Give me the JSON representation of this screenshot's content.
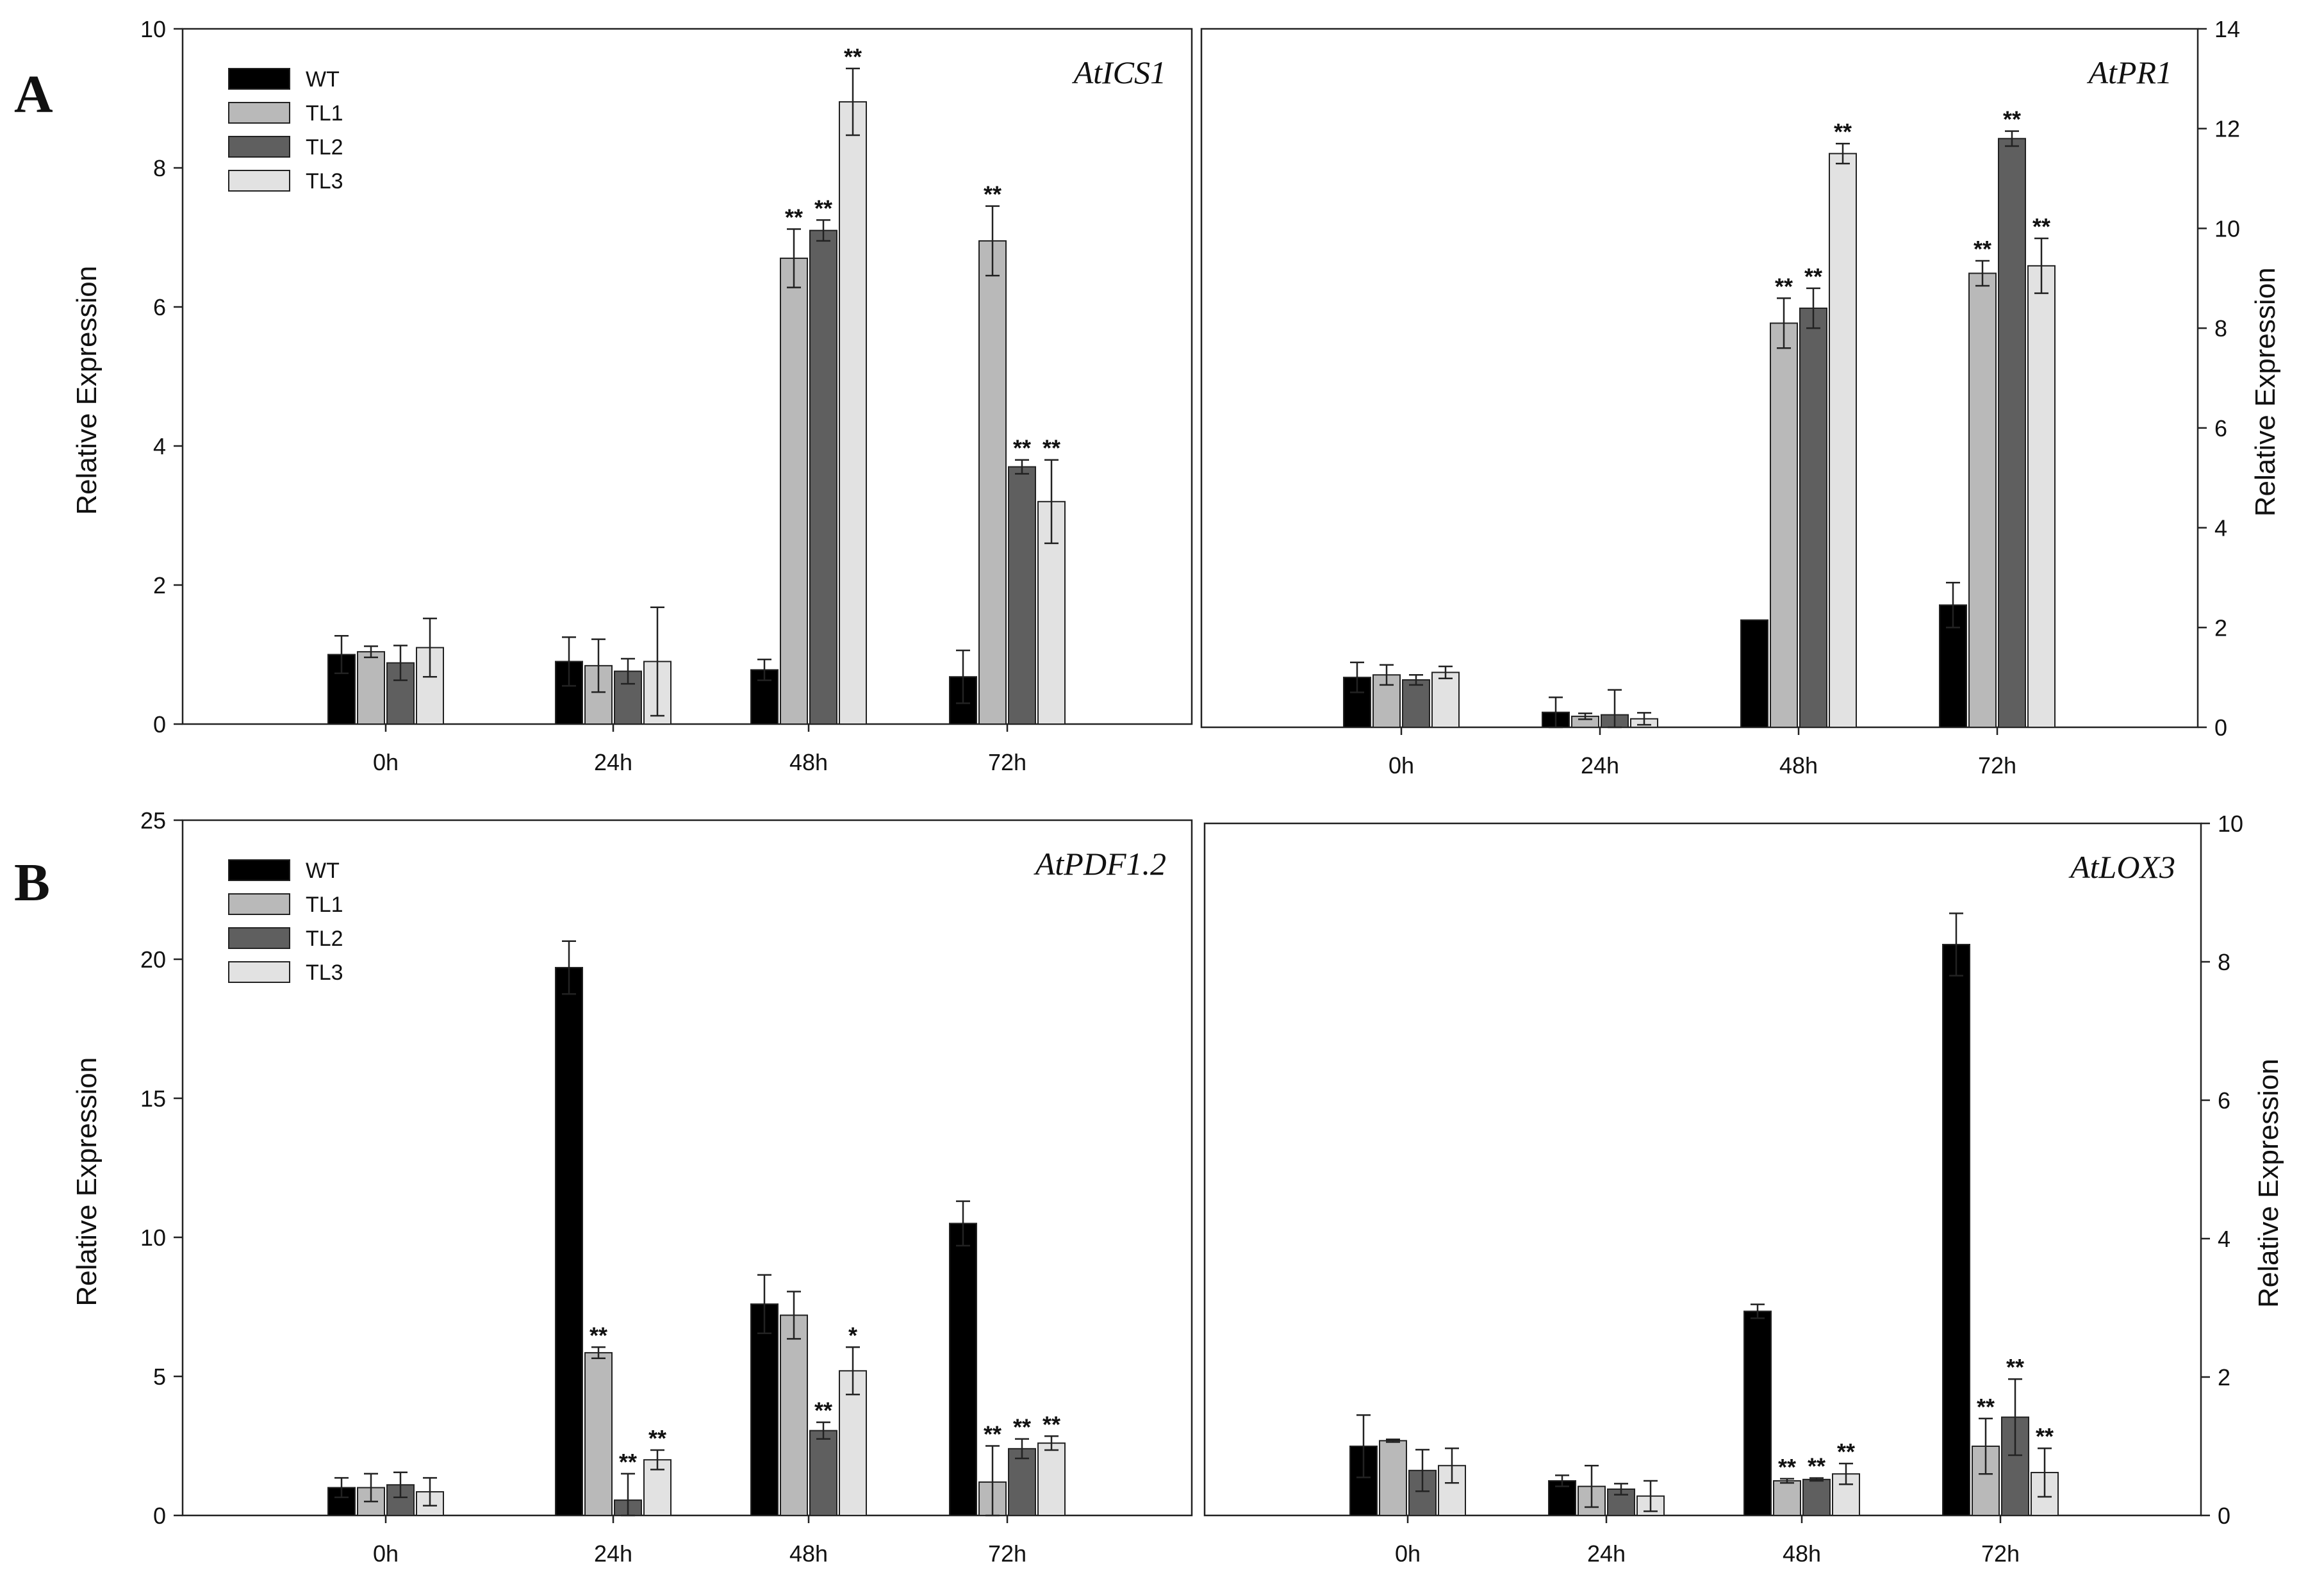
{
  "figure": {
    "letters": [
      "A",
      "B"
    ],
    "series_colors": {
      "WT": "#000000",
      "TL1": "#b9b9b9",
      "TL2": "#5f5f5f",
      "TL3": "#e2e2e2"
    }
  },
  "chart_data": [
    {
      "type": "bar",
      "title": "AtICS1",
      "ylabel": "Relative Expression",
      "ylim": [
        0,
        10
      ],
      "yticks": [
        0,
        2,
        4,
        6,
        8,
        10
      ],
      "y_axis_side": "left",
      "legend": "top-left",
      "categories": [
        "0h",
        "24h",
        "48h",
        "72h"
      ],
      "series": [
        {
          "name": "WT",
          "values": [
            1.0,
            0.9,
            0.78,
            0.68
          ],
          "errors": [
            0.27,
            0.35,
            0.15,
            0.38
          ],
          "sig": [
            "",
            "",
            "",
            ""
          ]
        },
        {
          "name": "TL1",
          "values": [
            1.04,
            0.84,
            6.7,
            6.95
          ],
          "errors": [
            0.08,
            0.38,
            0.42,
            0.5
          ],
          "sig": [
            "",
            "",
            "**",
            "**"
          ]
        },
        {
          "name": "TL2",
          "values": [
            0.88,
            0.76,
            7.1,
            3.7
          ],
          "errors": [
            0.25,
            0.18,
            0.15,
            0.1
          ],
          "sig": [
            "",
            "",
            "**",
            "**"
          ]
        },
        {
          "name": "TL3",
          "values": [
            1.1,
            0.9,
            8.95,
            3.2
          ],
          "errors": [
            0.42,
            0.78,
            0.48,
            0.6
          ],
          "sig": [
            "",
            "",
            "**",
            "**"
          ]
        }
      ]
    },
    {
      "type": "bar",
      "title": "AtPR1",
      "ylabel": "Relative Expression",
      "ylim": [
        0,
        14
      ],
      "yticks": [
        0,
        2,
        4,
        6,
        8,
        10,
        12,
        14
      ],
      "y_axis_side": "right",
      "categories": [
        "0h",
        "24h",
        "48h",
        "72h"
      ],
      "series": [
        {
          "name": "WT",
          "values": [
            1.0,
            0.3,
            2.15,
            2.45
          ],
          "errors": [
            0.3,
            0.3,
            0.0,
            0.45
          ],
          "sig": [
            "",
            "",
            "",
            ""
          ]
        },
        {
          "name": "TL1",
          "values": [
            1.05,
            0.22,
            8.1,
            9.1
          ],
          "errors": [
            0.2,
            0.06,
            0.5,
            0.25
          ],
          "sig": [
            "",
            "",
            "**",
            "**"
          ]
        },
        {
          "name": "TL2",
          "values": [
            0.95,
            0.25,
            8.4,
            11.8
          ],
          "errors": [
            0.1,
            0.5,
            0.4,
            0.15
          ],
          "sig": [
            "",
            "",
            "**",
            "**"
          ]
        },
        {
          "name": "TL3",
          "values": [
            1.1,
            0.17,
            11.5,
            9.25
          ],
          "errors": [
            0.12,
            0.12,
            0.2,
            0.55
          ],
          "sig": [
            "",
            "",
            "**",
            "**"
          ]
        }
      ]
    },
    {
      "type": "bar",
      "title": "AtPDF1.2",
      "ylabel": "Relative Expression",
      "ylim": [
        0,
        25
      ],
      "yticks": [
        0,
        5,
        10,
        15,
        20,
        25
      ],
      "y_axis_side": "left",
      "legend": "top-left",
      "categories": [
        "0h",
        "24h",
        "48h",
        "72h"
      ],
      "series": [
        {
          "name": "WT",
          "values": [
            1.0,
            19.7,
            7.6,
            10.5
          ],
          "errors": [
            0.35,
            0.95,
            1.05,
            0.8
          ],
          "sig": [
            "",
            "",
            "",
            ""
          ]
        },
        {
          "name": "TL1",
          "values": [
            1.0,
            5.85,
            7.2,
            1.2
          ],
          "errors": [
            0.5,
            0.2,
            0.85,
            1.3
          ],
          "sig": [
            "",
            "**",
            "",
            "**"
          ]
        },
        {
          "name": "TL2",
          "values": [
            1.1,
            0.55,
            3.05,
            2.4
          ],
          "errors": [
            0.45,
            0.95,
            0.3,
            0.35
          ],
          "sig": [
            "",
            "**",
            "**",
            "**"
          ]
        },
        {
          "name": "TL3",
          "values": [
            0.85,
            2.0,
            5.2,
            2.6
          ],
          "errors": [
            0.5,
            0.35,
            0.85,
            0.25
          ],
          "sig": [
            "",
            "**",
            "*",
            "**"
          ]
        }
      ]
    },
    {
      "type": "bar",
      "title": "AtLOX3",
      "ylabel": "Relative Expression",
      "ylim": [
        0,
        10
      ],
      "yticks": [
        0,
        2,
        4,
        6,
        8,
        10
      ],
      "y_axis_side": "right",
      "categories": [
        "0h",
        "24h",
        "48h",
        "72h"
      ],
      "series": [
        {
          "name": "WT",
          "values": [
            1.0,
            0.5,
            2.95,
            8.25
          ],
          "errors": [
            0.45,
            0.08,
            0.1,
            0.45
          ],
          "sig": [
            "",
            "",
            "",
            ""
          ]
        },
        {
          "name": "TL1",
          "values": [
            1.08,
            0.42,
            0.5,
            1.0
          ],
          "errors": [
            0.02,
            0.3,
            0.03,
            0.4
          ],
          "sig": [
            "",
            "",
            "**",
            "**"
          ]
        },
        {
          "name": "TL2",
          "values": [
            0.65,
            0.38,
            0.52,
            1.42
          ],
          "errors": [
            0.3,
            0.08,
            0.02,
            0.55
          ],
          "sig": [
            "",
            "",
            "**",
            "**"
          ]
        },
        {
          "name": "TL3",
          "values": [
            0.72,
            0.28,
            0.6,
            0.62
          ],
          "errors": [
            0.25,
            0.22,
            0.15,
            0.35
          ],
          "sig": [
            "",
            "",
            "**",
            "**"
          ]
        }
      ]
    }
  ]
}
